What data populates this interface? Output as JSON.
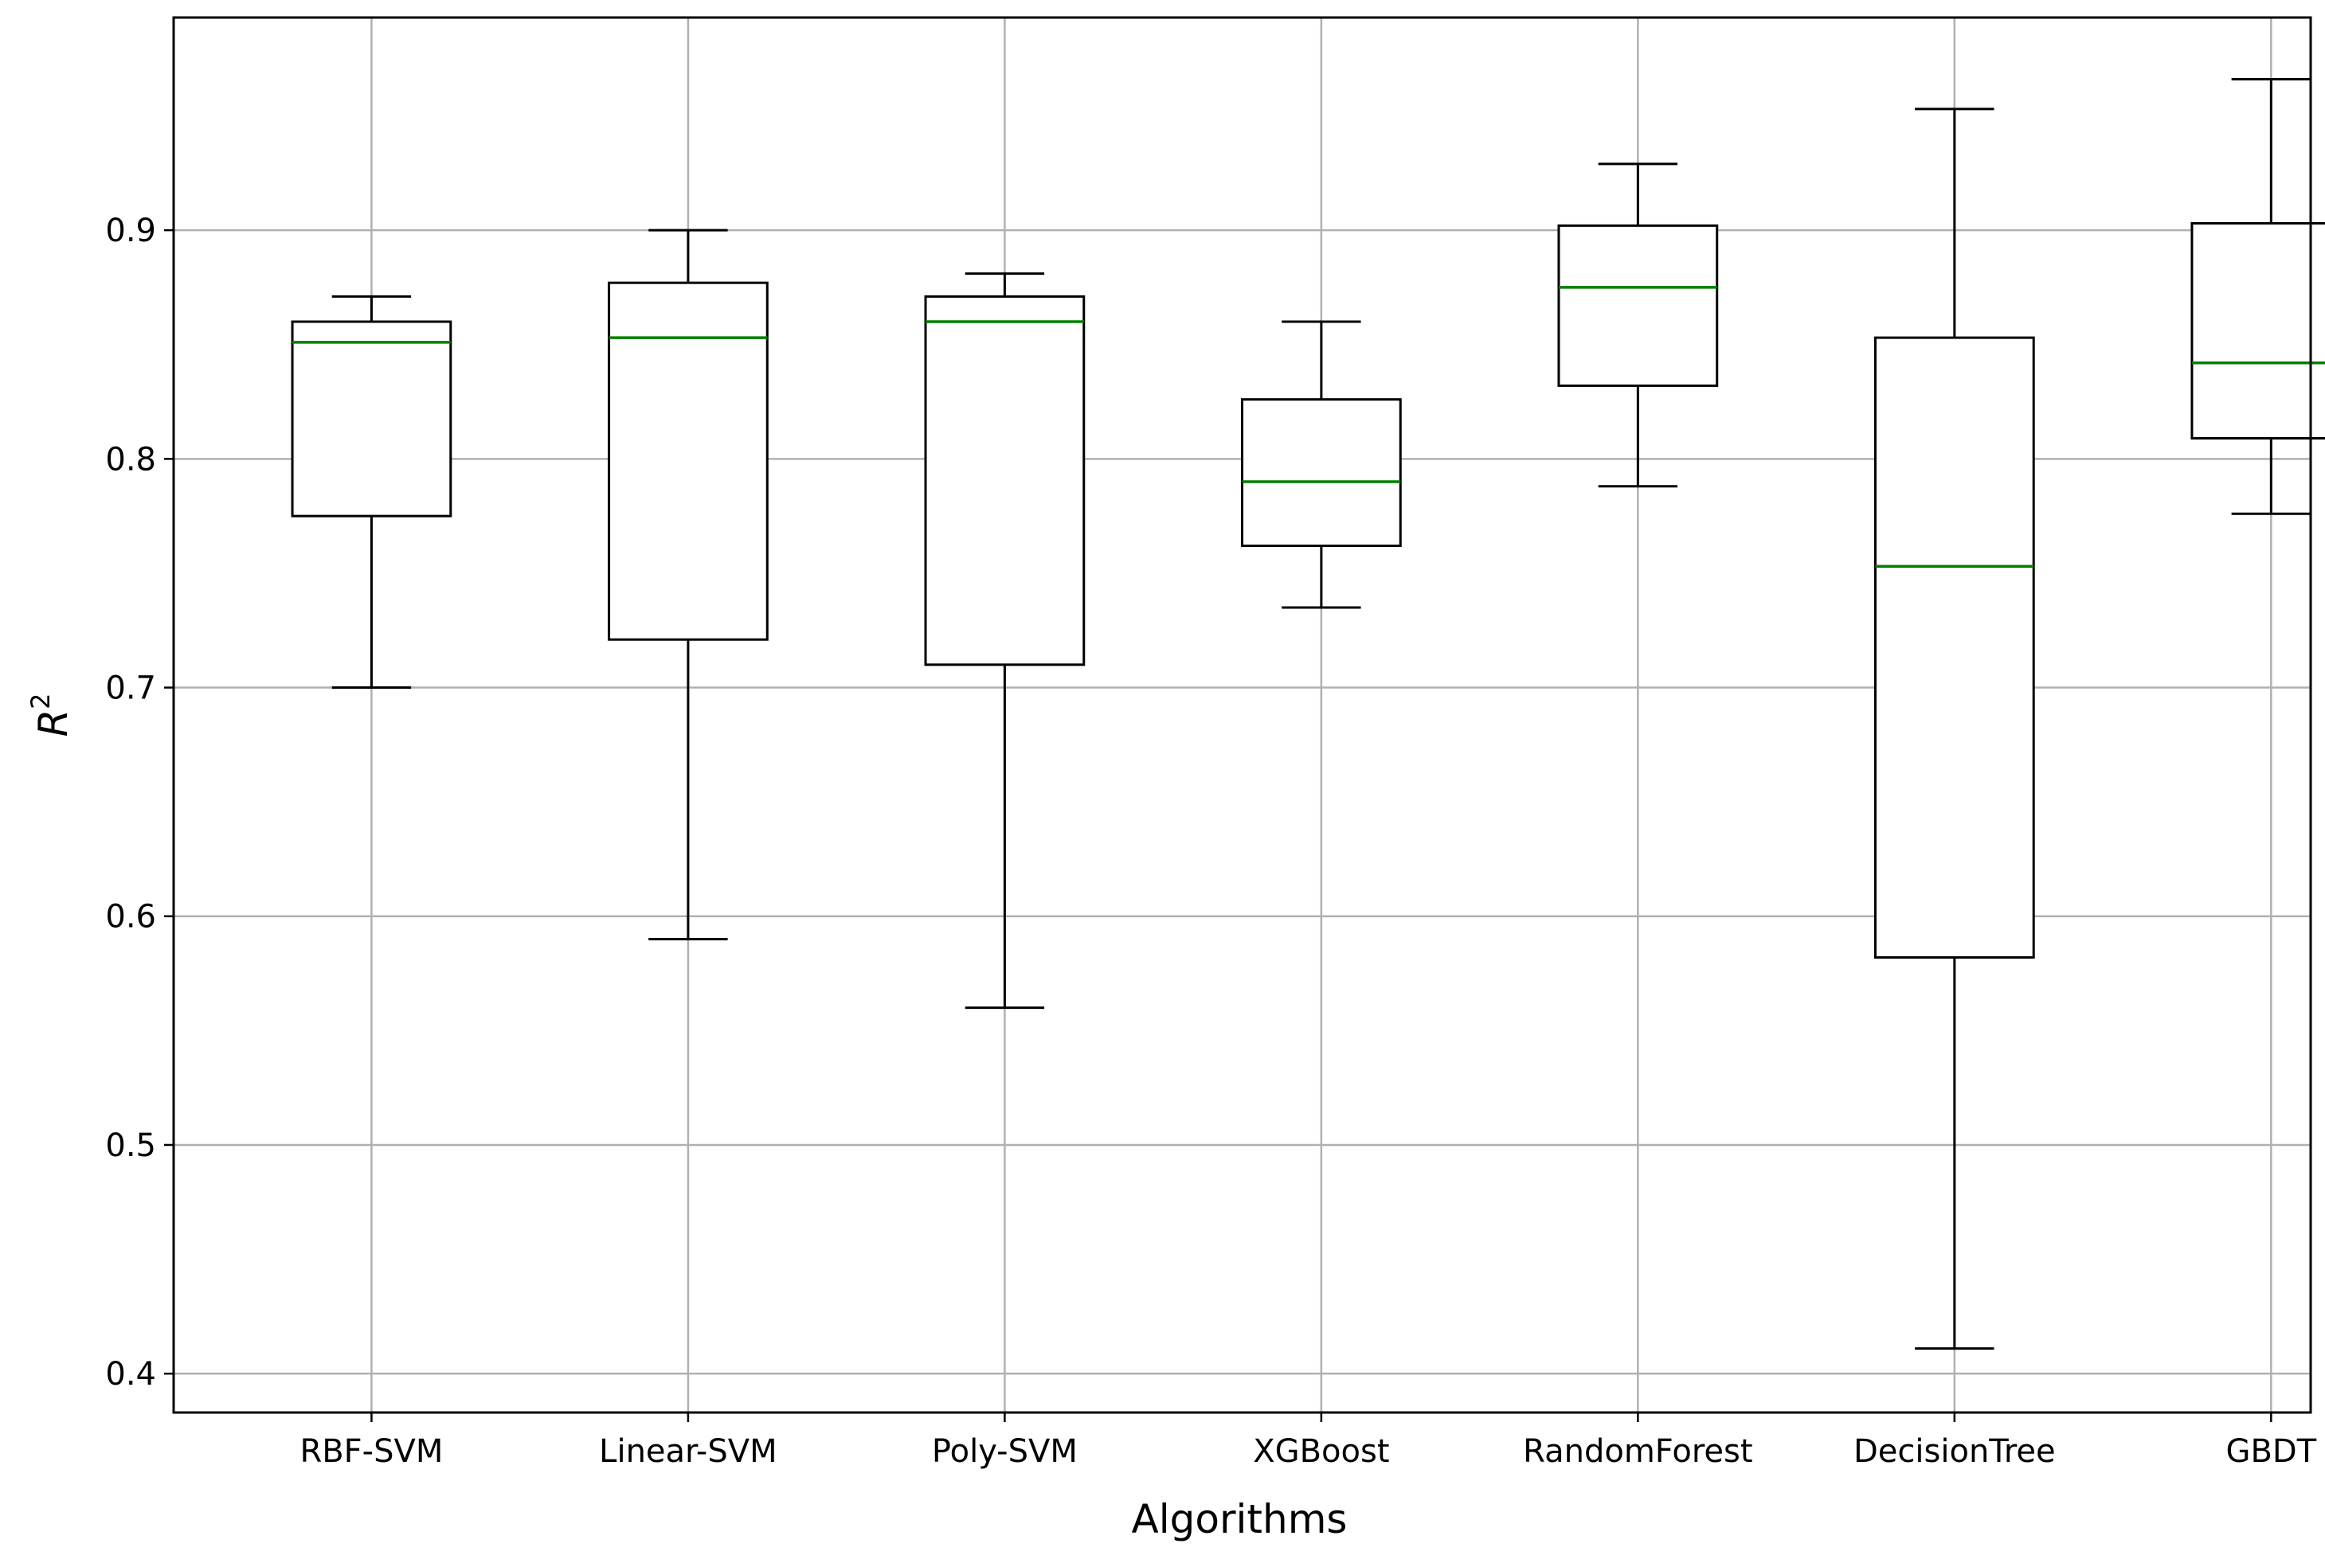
{
  "chart_data": {
    "type": "boxplot",
    "title": "",
    "xlabel": "Algorithms",
    "ylabel": "R",
    "ylabel_superscript": "2",
    "ylim": [
      0.383,
      0.993
    ],
    "yticks": [
      0.4,
      0.5,
      0.6,
      0.7,
      0.8,
      0.9
    ],
    "ytick_labels": [
      "0.4",
      "0.5",
      "0.6",
      "0.7",
      "0.8",
      "0.9"
    ],
    "grid": true,
    "categories": [
      "RBF-SVM",
      "Linear-SVM",
      "Poly-SVM",
      "XGBoost",
      "RandomForest",
      "DecisionTree",
      "GBDT"
    ],
    "boxes": [
      {
        "name": "RBF-SVM",
        "whislo": 0.7,
        "q1": 0.775,
        "med": 0.851,
        "q3": 0.86,
        "whishi": 0.871
      },
      {
        "name": "Linear-SVM",
        "whislo": 0.59,
        "q1": 0.721,
        "med": 0.853,
        "q3": 0.877,
        "whishi": 0.9
      },
      {
        "name": "Poly-SVM",
        "whislo": 0.56,
        "q1": 0.71,
        "med": 0.86,
        "q3": 0.871,
        "whishi": 0.881
      },
      {
        "name": "XGBoost",
        "whislo": 0.735,
        "q1": 0.762,
        "med": 0.79,
        "q3": 0.826,
        "whishi": 0.86
      },
      {
        "name": "RandomForest",
        "whislo": 0.788,
        "q1": 0.832,
        "med": 0.875,
        "q3": 0.902,
        "whishi": 0.929
      },
      {
        "name": "DecisionTree",
        "whislo": 0.411,
        "q1": 0.582,
        "med": 0.753,
        "q3": 0.853,
        "whishi": 0.953
      },
      {
        "name": "GBDT",
        "whislo": 0.776,
        "q1": 0.809,
        "med": 0.842,
        "q3": 0.903,
        "whishi": 0.966
      }
    ],
    "colors": {
      "box": "#000000",
      "median": "#008000",
      "grid": "#b0b0b0"
    }
  }
}
